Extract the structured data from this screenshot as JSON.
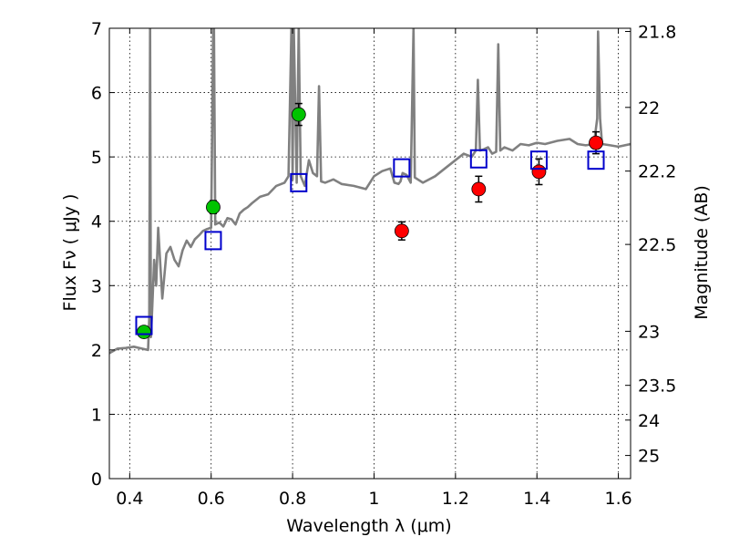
{
  "chart_data": {
    "type": "scatter",
    "xlabel": "Wavelength  λ (μm)",
    "ylabel": "Flux  Fν  ( μJy )",
    "ylabel_right": "Magnitude (AB)",
    "xlim": [
      0.35,
      1.63
    ],
    "ylim": [
      0,
      7
    ],
    "grid": true,
    "x_ticks": [
      0.4,
      0.6,
      0.8,
      1.0,
      1.2,
      1.4,
      1.6
    ],
    "x_tick_labels": [
      "0.4",
      "0.6",
      "0.8",
      "1",
      "1.2",
      "1.4",
      "1.6"
    ],
    "y_ticks": [
      0,
      1,
      2,
      3,
      4,
      5,
      6,
      7
    ],
    "y_tick_labels": [
      "0",
      "1",
      "2",
      "3",
      "4",
      "5",
      "6",
      "7"
    ],
    "right_axis": {
      "ticks": [
        {
          "label": "21.8",
          "flux": 6.95
        },
        {
          "label": "22",
          "flux": 5.77
        },
        {
          "label": "22.2",
          "flux": 4.78
        },
        {
          "label": "22.5",
          "flux": 3.64
        },
        {
          "label": "23",
          "flux": 2.29
        },
        {
          "label": "23.5",
          "flux": 1.45
        },
        {
          "label": "24",
          "flux": 0.91
        },
        {
          "label": "25",
          "flux": 0.36
        }
      ]
    },
    "model_spectrum": {
      "color": "#808080",
      "x": [
        0.35,
        0.37,
        0.39,
        0.41,
        0.43,
        0.445,
        0.448,
        0.45,
        0.452,
        0.455,
        0.46,
        0.465,
        0.47,
        0.48,
        0.49,
        0.5,
        0.51,
        0.52,
        0.53,
        0.54,
        0.55,
        0.56,
        0.57,
        0.58,
        0.59,
        0.6,
        0.605,
        0.607,
        0.61,
        0.62,
        0.63,
        0.64,
        0.65,
        0.66,
        0.67,
        0.68,
        0.69,
        0.7,
        0.72,
        0.74,
        0.76,
        0.78,
        0.79,
        0.797,
        0.8,
        0.803,
        0.81,
        0.815,
        0.82,
        0.83,
        0.84,
        0.85,
        0.86,
        0.865,
        0.87,
        0.88,
        0.9,
        0.92,
        0.95,
        0.98,
        1.0,
        1.02,
        1.04,
        1.05,
        1.06,
        1.065,
        1.07,
        1.08,
        1.09,
        1.097,
        1.1,
        1.12,
        1.15,
        1.18,
        1.2,
        1.22,
        1.24,
        1.25,
        1.255,
        1.26,
        1.27,
        1.28,
        1.29,
        1.3,
        1.305,
        1.31,
        1.32,
        1.34,
        1.36,
        1.38,
        1.4,
        1.42,
        1.45,
        1.48,
        1.5,
        1.52,
        1.54,
        1.548,
        1.55,
        1.555,
        1.56,
        1.58,
        1.6,
        1.63
      ],
      "y": [
        1.95,
        2.02,
        2.03,
        2.05,
        2.02,
        2.0,
        2.5,
        7.0,
        2.2,
        2.6,
        3.4,
        3.0,
        3.9,
        2.8,
        3.5,
        3.6,
        3.4,
        3.3,
        3.55,
        3.7,
        3.6,
        3.72,
        3.78,
        3.85,
        3.88,
        3.9,
        7.0,
        7.0,
        3.95,
        3.98,
        3.92,
        4.05,
        4.03,
        3.95,
        4.12,
        4.18,
        4.22,
        4.28,
        4.38,
        4.42,
        4.55,
        4.6,
        4.7,
        7.0,
        4.65,
        7.0,
        4.6,
        7.0,
        4.7,
        4.55,
        4.95,
        4.75,
        4.7,
        6.1,
        4.62,
        4.6,
        4.65,
        4.58,
        4.55,
        4.5,
        4.7,
        4.78,
        4.82,
        4.6,
        4.58,
        4.62,
        4.75,
        4.72,
        4.6,
        7.0,
        4.68,
        4.6,
        4.7,
        4.85,
        4.95,
        5.05,
        5.0,
        5.1,
        6.2,
        5.1,
        5.12,
        5.15,
        5.05,
        5.08,
        6.75,
        5.1,
        5.15,
        5.1,
        5.2,
        5.18,
        5.22,
        5.2,
        5.25,
        5.28,
        5.2,
        5.18,
        5.2,
        5.6,
        6.95,
        5.6,
        5.2,
        5.18,
        5.16,
        5.2
      ]
    },
    "series": [
      {
        "marker": "circle",
        "color": "#00c400",
        "points": [
          {
            "x": 0.435,
            "y": 2.28,
            "err": 0.07
          },
          {
            "x": 0.605,
            "y": 4.22,
            "err": 0.1
          },
          {
            "x": 0.815,
            "y": 5.66,
            "err": 0.17
          }
        ]
      },
      {
        "marker": "circle",
        "color": "#ff0000",
        "points": [
          {
            "x": 1.068,
            "y": 3.85,
            "err": 0.14
          },
          {
            "x": 1.257,
            "y": 4.5,
            "err": 0.2
          },
          {
            "x": 1.405,
            "y": 4.77,
            "err": 0.2
          },
          {
            "x": 1.545,
            "y": 5.22,
            "err": 0.17
          }
        ]
      },
      {
        "marker": "open-square",
        "color": "#0000cc",
        "points": [
          {
            "x": 0.435,
            "y": 2.38
          },
          {
            "x": 0.605,
            "y": 3.7
          },
          {
            "x": 0.815,
            "y": 4.6
          },
          {
            "x": 1.068,
            "y": 4.83
          },
          {
            "x": 1.257,
            "y": 4.97
          },
          {
            "x": 1.405,
            "y": 4.95
          },
          {
            "x": 1.545,
            "y": 4.95
          }
        ]
      }
    ]
  }
}
